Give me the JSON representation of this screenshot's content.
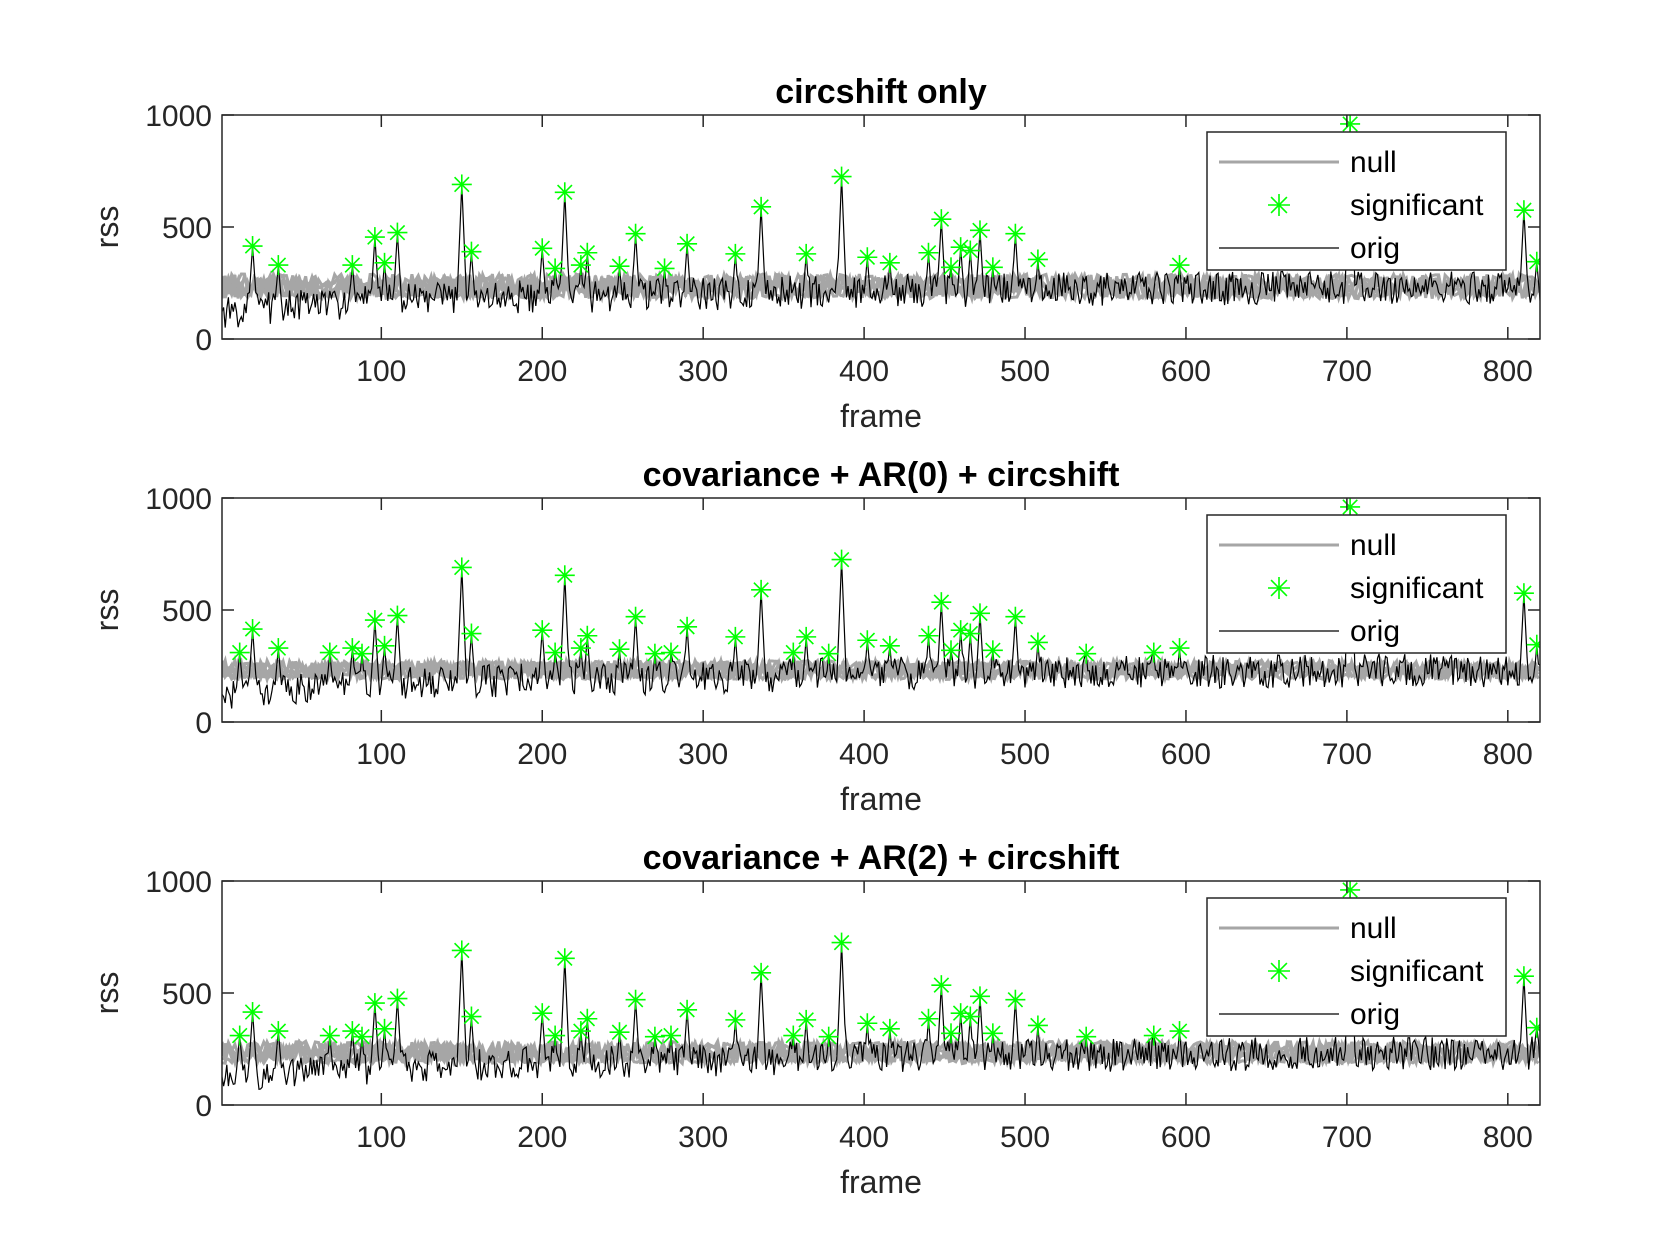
{
  "figure": {
    "background": "#ffffff",
    "colors": {
      "null": "#a6a6a6",
      "significant": "#00ff00",
      "orig": "#000000"
    }
  },
  "chart_data": [
    {
      "type": "line",
      "title": "circshift only",
      "xlabel": "frame",
      "ylabel": "rss",
      "xlim": [
        1,
        820
      ],
      "ylim": [
        0,
        1000
      ],
      "xticks": [
        100,
        200,
        300,
        400,
        500,
        600,
        700,
        800
      ],
      "yticks": [
        0,
        500,
        1000
      ],
      "legend": {
        "placement": "top-right",
        "entries": [
          "null",
          "significant",
          "orig"
        ]
      },
      "null_band": {
        "low": 180,
        "high": 290
      },
      "orig_baseline": [
        [
          1,
          120
        ],
        [
          50,
          150
        ],
        [
          100,
          170
        ],
        [
          200,
          190
        ],
        [
          300,
          200
        ],
        [
          400,
          215
        ],
        [
          500,
          220
        ],
        [
          600,
          225
        ],
        [
          700,
          230
        ],
        [
          800,
          230
        ],
        [
          820,
          230
        ]
      ],
      "significant_points": [
        [
          20,
          415
        ],
        [
          36,
          330
        ],
        [
          82,
          330
        ],
        [
          96,
          455
        ],
        [
          102,
          340
        ],
        [
          110,
          475
        ],
        [
          150,
          690
        ],
        [
          156,
          390
        ],
        [
          200,
          405
        ],
        [
          208,
          315
        ],
        [
          214,
          655
        ],
        [
          224,
          330
        ],
        [
          228,
          385
        ],
        [
          248,
          325
        ],
        [
          258,
          470
        ],
        [
          276,
          315
        ],
        [
          290,
          425
        ],
        [
          320,
          380
        ],
        [
          336,
          590
        ],
        [
          364,
          380
        ],
        [
          386,
          725
        ],
        [
          402,
          365
        ],
        [
          416,
          340
        ],
        [
          440,
          385
        ],
        [
          448,
          535
        ],
        [
          454,
          320
        ],
        [
          460,
          410
        ],
        [
          466,
          395
        ],
        [
          472,
          485
        ],
        [
          480,
          320
        ],
        [
          494,
          470
        ],
        [
          508,
          355
        ],
        [
          596,
          330
        ],
        [
          702,
          960
        ],
        [
          810,
          575
        ],
        [
          818,
          345
        ]
      ]
    },
    {
      "type": "line",
      "title": "covariance + AR(0) + circshift",
      "xlabel": "frame",
      "ylabel": "rss",
      "xlim": [
        1,
        820
      ],
      "ylim": [
        0,
        1000
      ],
      "xticks": [
        100,
        200,
        300,
        400,
        500,
        600,
        700,
        800
      ],
      "yticks": [
        0,
        500,
        1000
      ],
      "legend": {
        "placement": "top-right",
        "entries": [
          "null",
          "significant",
          "orig"
        ]
      },
      "null_band": {
        "low": 190,
        "high": 275
      },
      "orig_baseline": [
        [
          1,
          120
        ],
        [
          50,
          150
        ],
        [
          100,
          170
        ],
        [
          200,
          190
        ],
        [
          300,
          200
        ],
        [
          400,
          215
        ],
        [
          500,
          220
        ],
        [
          600,
          225
        ],
        [
          700,
          230
        ],
        [
          800,
          230
        ],
        [
          820,
          230
        ]
      ],
      "significant_points": [
        [
          12,
          310
        ],
        [
          20,
          415
        ],
        [
          36,
          330
        ],
        [
          68,
          310
        ],
        [
          82,
          330
        ],
        [
          88,
          305
        ],
        [
          96,
          455
        ],
        [
          102,
          340
        ],
        [
          110,
          475
        ],
        [
          150,
          690
        ],
        [
          156,
          395
        ],
        [
          200,
          410
        ],
        [
          208,
          310
        ],
        [
          214,
          655
        ],
        [
          224,
          330
        ],
        [
          228,
          385
        ],
        [
          248,
          325
        ],
        [
          258,
          470
        ],
        [
          270,
          305
        ],
        [
          280,
          310
        ],
        [
          290,
          425
        ],
        [
          320,
          380
        ],
        [
          336,
          590
        ],
        [
          356,
          310
        ],
        [
          364,
          380
        ],
        [
          378,
          305
        ],
        [
          386,
          725
        ],
        [
          402,
          365
        ],
        [
          416,
          340
        ],
        [
          440,
          385
        ],
        [
          448,
          535
        ],
        [
          454,
          320
        ],
        [
          460,
          410
        ],
        [
          466,
          395
        ],
        [
          472,
          485
        ],
        [
          480,
          320
        ],
        [
          494,
          470
        ],
        [
          508,
          355
        ],
        [
          538,
          305
        ],
        [
          580,
          310
        ],
        [
          596,
          330
        ],
        [
          702,
          960
        ],
        [
          810,
          575
        ],
        [
          818,
          345
        ]
      ]
    },
    {
      "type": "line",
      "title": "covariance + AR(2) + circshift",
      "xlabel": "frame",
      "ylabel": "rss",
      "xlim": [
        1,
        820
      ],
      "ylim": [
        0,
        1000
      ],
      "xticks": [
        100,
        200,
        300,
        400,
        500,
        600,
        700,
        800
      ],
      "yticks": [
        0,
        500,
        1000
      ],
      "legend": {
        "placement": "top-right",
        "entries": [
          "null",
          "significant",
          "orig"
        ]
      },
      "null_band": {
        "low": 185,
        "high": 285
      },
      "orig_baseline": [
        [
          1,
          120
        ],
        [
          50,
          150
        ],
        [
          100,
          170
        ],
        [
          200,
          190
        ],
        [
          300,
          200
        ],
        [
          400,
          215
        ],
        [
          500,
          220
        ],
        [
          600,
          225
        ],
        [
          700,
          230
        ],
        [
          800,
          230
        ],
        [
          820,
          230
        ]
      ],
      "significant_points": [
        [
          12,
          310
        ],
        [
          20,
          415
        ],
        [
          36,
          330
        ],
        [
          68,
          310
        ],
        [
          82,
          330
        ],
        [
          88,
          305
        ],
        [
          96,
          455
        ],
        [
          102,
          340
        ],
        [
          110,
          475
        ],
        [
          150,
          690
        ],
        [
          156,
          395
        ],
        [
          200,
          410
        ],
        [
          208,
          310
        ],
        [
          214,
          655
        ],
        [
          224,
          330
        ],
        [
          228,
          385
        ],
        [
          248,
          325
        ],
        [
          258,
          470
        ],
        [
          270,
          305
        ],
        [
          280,
          310
        ],
        [
          290,
          425
        ],
        [
          320,
          380
        ],
        [
          336,
          590
        ],
        [
          356,
          310
        ],
        [
          364,
          380
        ],
        [
          378,
          305
        ],
        [
          386,
          725
        ],
        [
          402,
          365
        ],
        [
          416,
          340
        ],
        [
          440,
          385
        ],
        [
          448,
          535
        ],
        [
          454,
          320
        ],
        [
          460,
          410
        ],
        [
          466,
          395
        ],
        [
          472,
          485
        ],
        [
          480,
          320
        ],
        [
          494,
          470
        ],
        [
          508,
          355
        ],
        [
          538,
          305
        ],
        [
          580,
          310
        ],
        [
          596,
          330
        ],
        [
          702,
          960
        ],
        [
          810,
          575
        ],
        [
          818,
          345
        ]
      ]
    }
  ]
}
